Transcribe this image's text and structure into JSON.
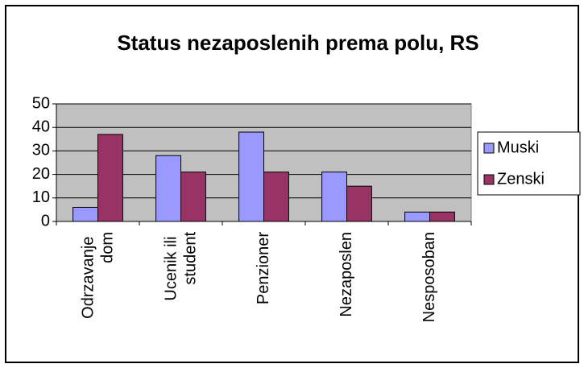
{
  "chart_data": {
    "type": "bar",
    "title": "Status nezaposlenih prema polu, RS",
    "categories": [
      "Odrzavanje dom",
      "Ucenik ili student",
      "Penzioner",
      "Nezaposlen",
      "Nesposoban"
    ],
    "series": [
      {
        "name": "Muski",
        "color": "#9999ff",
        "values": [
          6,
          28,
          38,
          21,
          4
        ]
      },
      {
        "name": "Zenski",
        "color": "#993366",
        "values": [
          37,
          21,
          21,
          15,
          4
        ]
      }
    ],
    "ylim": [
      0,
      50
    ],
    "yticks": [
      0,
      10,
      20,
      30,
      40,
      50
    ],
    "grid": true,
    "legend": "right"
  }
}
